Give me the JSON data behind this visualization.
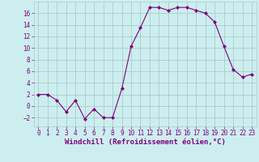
{
  "x": [
    0,
    1,
    2,
    3,
    4,
    5,
    6,
    7,
    8,
    9,
    10,
    11,
    12,
    13,
    14,
    15,
    16,
    17,
    18,
    19,
    20,
    21,
    22,
    23
  ],
  "y": [
    2,
    2,
    1,
    -1,
    1,
    -2.2,
    -0.5,
    -2,
    -2,
    3,
    10.3,
    13.5,
    17,
    17,
    16.5,
    17,
    17,
    16.5,
    16,
    14.5,
    10.3,
    6.3,
    5,
    5.5
  ],
  "line_color": "#800080",
  "marker_color": "#800080",
  "bg_color": "#cceeee",
  "grid_color": "#aacccc",
  "xlabel": "Windchill (Refroidissement éolien,°C)",
  "xlim": [
    -0.5,
    23.5
  ],
  "ylim": [
    -3.5,
    18
  ],
  "yticks": [
    -2,
    0,
    2,
    4,
    6,
    8,
    10,
    12,
    14,
    16
  ],
  "xticks": [
    0,
    1,
    2,
    3,
    4,
    5,
    6,
    7,
    8,
    9,
    10,
    11,
    12,
    13,
    14,
    15,
    16,
    17,
    18,
    19,
    20,
    21,
    22,
    23
  ],
  "tick_fontsize": 5.5,
  "label_fontsize": 6.5,
  "linewidth": 0.8,
  "markersize": 2.0
}
